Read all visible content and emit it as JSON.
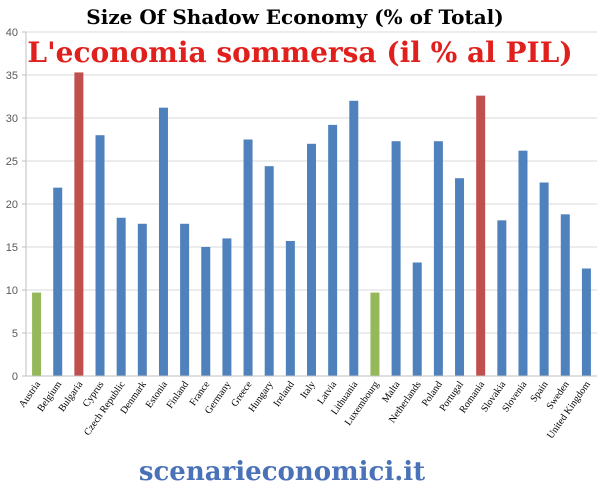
{
  "chart_data": {
    "type": "bar",
    "title": "Size Of Shadow Economy (% of Total)",
    "subtitle": "L'economia sommersa (il % al PIL)",
    "categories": [
      "Austria",
      "Belgium",
      "Bulgaria",
      "Cyprus",
      "Czech Republic",
      "Denmark",
      "Estonia",
      "Finland",
      "France",
      "Germany",
      "Greece",
      "Hungary",
      "Ireland",
      "Italy",
      "Latvia",
      "Lithuania",
      "Luxembourg",
      "Malta",
      "Netherlands",
      "Poland",
      "Portugal",
      "Romania",
      "Slovakia",
      "Slovenia",
      "Spain",
      "Sweden",
      "United Kingdom"
    ],
    "values": [
      9.7,
      21.9,
      35.3,
      28.0,
      18.4,
      17.7,
      31.2,
      17.7,
      15.0,
      16.0,
      27.5,
      24.4,
      15.7,
      27.0,
      29.2,
      32.0,
      9.7,
      27.3,
      13.2,
      27.3,
      23.0,
      32.6,
      18.1,
      26.2,
      22.5,
      18.8,
      12.5
    ],
    "bar_colors": [
      "#95b85a",
      "#4f81bd",
      "#c0504d",
      "#4f81bd",
      "#4f81bd",
      "#4f81bd",
      "#4f81bd",
      "#4f81bd",
      "#4f81bd",
      "#4f81bd",
      "#4f81bd",
      "#4f81bd",
      "#4f81bd",
      "#4f81bd",
      "#4f81bd",
      "#4f81bd",
      "#95b85a",
      "#4f81bd",
      "#4f81bd",
      "#4f81bd",
      "#4f81bd",
      "#c0504d",
      "#4f81bd",
      "#4f81bd",
      "#4f81bd",
      "#4f81bd",
      "#4f81bd"
    ],
    "yticks": [
      "0",
      "5",
      "10",
      "15",
      "20",
      "25",
      "30",
      "35",
      "40"
    ],
    "ylim": [
      0,
      40
    ],
    "grid": true,
    "xlabel": "",
    "ylabel": ""
  },
  "footer": {
    "watermark": "scenarieconomici.it"
  },
  "colors": {
    "title": "#000000",
    "subtitle": "#e0201c",
    "grid": "#d9d9d9",
    "axis": "#bfbfbf",
    "tick_label": "#595959",
    "watermark": "#4a72b8"
  }
}
